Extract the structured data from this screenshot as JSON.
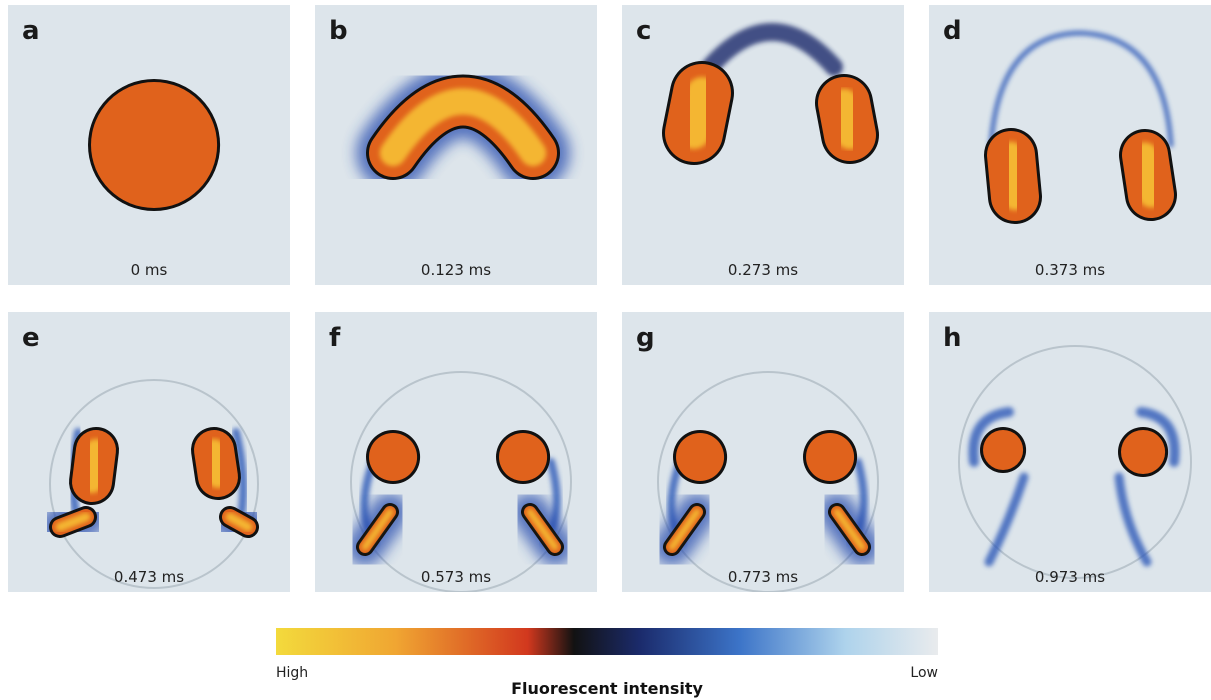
{
  "panels": [
    {
      "label": "a",
      "time": "0 ms"
    },
    {
      "label": "b",
      "time": "0.123 ms"
    },
    {
      "label": "c",
      "time": "0.273 ms"
    },
    {
      "label": "d",
      "time": "0.373 ms"
    },
    {
      "label": "e",
      "time": "0.473 ms"
    },
    {
      "label": "f",
      "time": "0.573 ms"
    },
    {
      "label": "g",
      "time": "0.773 ms"
    },
    {
      "label": "h",
      "time": "0.973 ms"
    }
  ],
  "colorbar": {
    "high": "High",
    "low": "Low",
    "title": "Fluorescent intensity"
  }
}
